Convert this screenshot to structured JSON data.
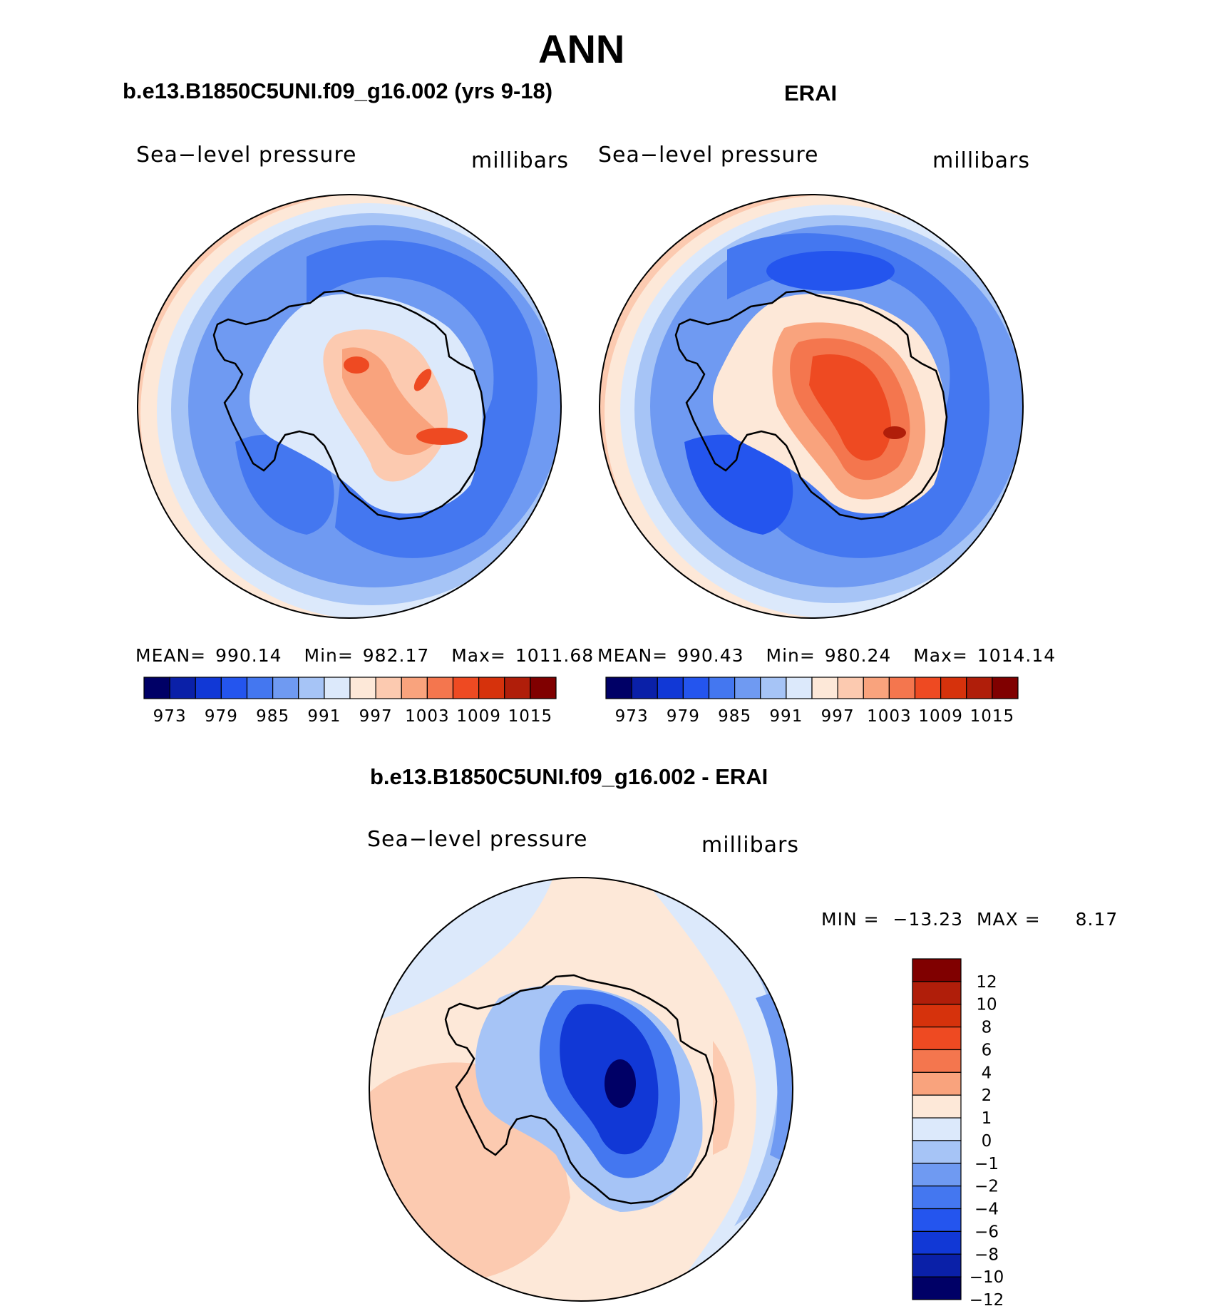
{
  "figure": {
    "title": "ANN",
    "colors": {
      "abs_scale": [
        "#000066",
        "#0a20a8",
        "#1138d6",
        "#2455ee",
        "#4477f0",
        "#6f9af2",
        "#a6c4f6",
        "#dce9fb",
        "#fde8d8",
        "#fccab0",
        "#f9a37d",
        "#f4764e",
        "#ee4a22",
        "#d6320c",
        "#b01e0a",
        "#800000"
      ],
      "diff_scale_top_to_bottom": [
        "#800000",
        "#b01e0a",
        "#d6320c",
        "#ee4a22",
        "#f4764e",
        "#f9a37d",
        "#fde8d8",
        "#dce9fb",
        "#a6c4f6",
        "#6f9af2",
        "#4477f0",
        "#2455ee",
        "#1138d6",
        "#0a20a8",
        "#000066"
      ]
    }
  },
  "chart_data": [
    {
      "type": "heatmap",
      "title": "b.e13.B1850C5UNI.f09_g16.002 (yrs 9-18)",
      "variable": "Sea−level pressure",
      "units": "millibars",
      "projection": "south-polar-stereographic",
      "stats": {
        "mean_label": "MEAN=",
        "mean": "990.14",
        "min_label": "Min=",
        "min": "982.17",
        "max_label": "Max=",
        "max": "1011.68"
      },
      "colorbar_ticks": [
        "973",
        "979",
        "985",
        "991",
        "997",
        "1003",
        "1009",
        "1015"
      ],
      "contour_levels": [
        970,
        973,
        976,
        979,
        982,
        985,
        988,
        991,
        994,
        997,
        1000,
        1003,
        1006,
        1009,
        1012,
        1015
      ]
    },
    {
      "type": "heatmap",
      "title": "ERAI",
      "variable": "Sea−level pressure",
      "units": "millibars",
      "projection": "south-polar-stereographic",
      "stats": {
        "mean_label": "MEAN=",
        "mean": "990.43",
        "min_label": "Min=",
        "min": "980.24",
        "max_label": "Max=",
        "max": "1014.14"
      },
      "colorbar_ticks": [
        "973",
        "979",
        "985",
        "991",
        "997",
        "1003",
        "1009",
        "1015"
      ],
      "contour_levels": [
        970,
        973,
        976,
        979,
        982,
        985,
        988,
        991,
        994,
        997,
        1000,
        1003,
        1006,
        1009,
        1012,
        1015
      ]
    },
    {
      "type": "heatmap",
      "title": "b.e13.B1850C5UNI.f09_g16.002 - ERAI",
      "variable": "Sea−level pressure",
      "units": "millibars",
      "projection": "south-polar-stereographic",
      "stats": {
        "min_label": "MIN =",
        "min": "−13.23",
        "max_label": "MAX =",
        "max": "8.17"
      },
      "colorbar_ticks": [
        "12",
        "10",
        "8",
        "6",
        "4",
        "2",
        "1",
        "0",
        "−1",
        "−2",
        "−4",
        "−6",
        "−8",
        "−10",
        "−12"
      ]
    }
  ]
}
